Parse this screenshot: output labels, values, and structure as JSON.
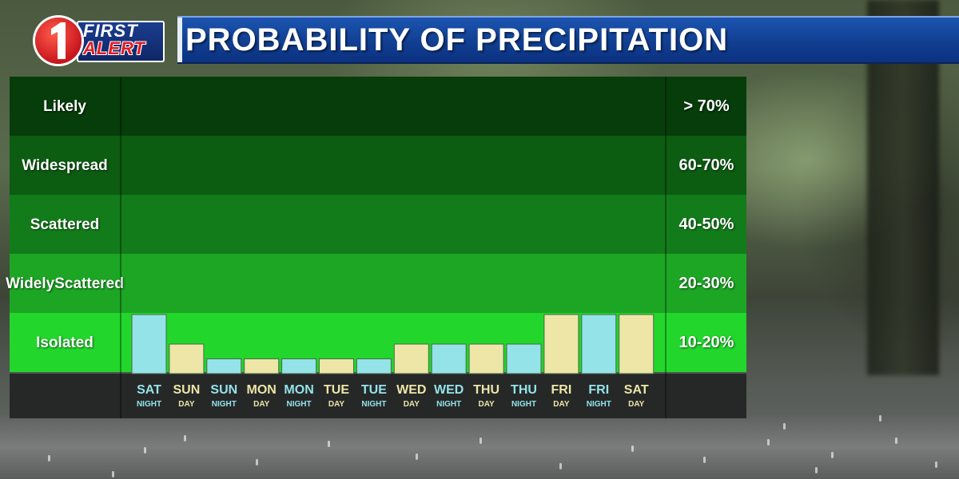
{
  "logo": {
    "line1": "FIRST",
    "line2": "ALERT"
  },
  "title": "PROBABILITY OF PRECIPITATION",
  "bands": [
    {
      "label": "Likely",
      "range": "> 70%",
      "color": "#063d0a"
    },
    {
      "label": "Widespread",
      "range": "60-70%",
      "color": "#0c5c12"
    },
    {
      "label": "Scattered",
      "range": "40-50%",
      "color": "#137c1a"
    },
    {
      "label": "Widely Scattered",
      "range": "20-30%",
      "color": "#1ca624"
    },
    {
      "label": "Isolated",
      "range": "10-20%",
      "color": "#22d62c"
    }
  ],
  "colors": {
    "day": "#ede6a6",
    "night": "#94e3e8",
    "axis_bg": "#262828"
  },
  "chart_data": {
    "type": "bar",
    "title": "PROBABILITY OF PRECIPITATION",
    "ylim": [
      0,
      100
    ],
    "bands": [
      "Likely",
      "Widespread",
      "Scattered",
      "Widely Scattered",
      "Isolated"
    ],
    "band_ranges": [
      "> 70%",
      "60-70%",
      "40-50%",
      "20-30%",
      "10-20%"
    ],
    "categories": [
      {
        "day": "SAT",
        "period": "NIGHT"
      },
      {
        "day": "SUN",
        "period": "DAY"
      },
      {
        "day": "SUN",
        "period": "NIGHT"
      },
      {
        "day": "MON",
        "period": "DAY"
      },
      {
        "day": "MON",
        "period": "NIGHT"
      },
      {
        "day": "TUE",
        "period": "DAY"
      },
      {
        "day": "TUE",
        "period": "NIGHT"
      },
      {
        "day": "WED",
        "period": "DAY"
      },
      {
        "day": "WED",
        "period": "NIGHT"
      },
      {
        "day": "THU",
        "period": "DAY"
      },
      {
        "day": "THU",
        "period": "NIGHT"
      },
      {
        "day": "FRI",
        "period": "DAY"
      },
      {
        "day": "FRI",
        "period": "NIGHT"
      },
      {
        "day": "SAT",
        "period": "DAY"
      }
    ],
    "values": [
      20,
      10,
      5,
      5,
      5,
      5,
      5,
      10,
      10,
      10,
      10,
      20,
      20,
      20
    ]
  }
}
